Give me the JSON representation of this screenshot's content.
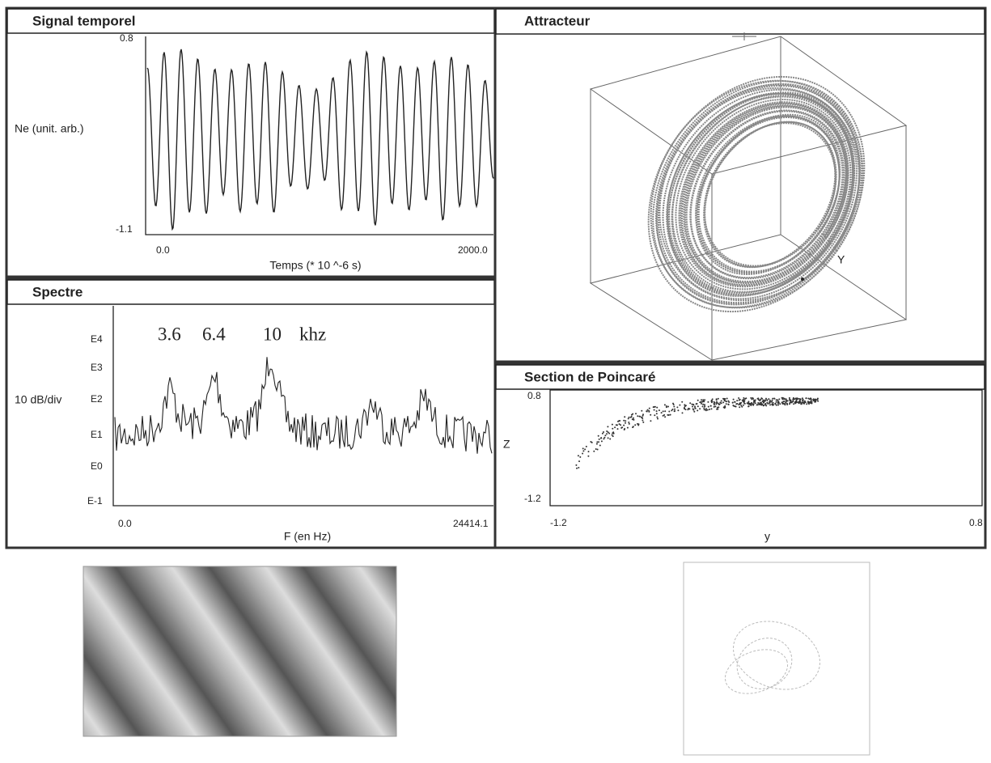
{
  "panels": {
    "signal": {
      "title": "Signal temporel",
      "y_label": "Ne (unit. arb.)",
      "y_ticks": [
        "0.8",
        "-1.1"
      ],
      "x_ticks": [
        "0.0",
        "2000.0"
      ],
      "x_label": "Temps (* 10 ^-6 s)"
    },
    "spectrum": {
      "title": "Spectre",
      "y_label": "10 dB/div",
      "y_ticks": [
        "E4",
        "E3",
        "E2",
        "E1",
        "E0",
        "E-1"
      ],
      "annotations": [
        "3.6",
        "6.4",
        "10",
        "khz"
      ],
      "x_ticks": [
        "0.0",
        "24414.1"
      ],
      "x_label": "F (en Hz)"
    },
    "attractor": {
      "title": "Attracteur",
      "axis_label": "Y"
    },
    "poincare": {
      "title": "Section de Poincaré",
      "y_label": "Z",
      "y_ticks": [
        "0.8",
        "-1.2"
      ],
      "x_ticks": [
        "-1.2",
        "0.8"
      ],
      "x_label": "y"
    }
  }
}
